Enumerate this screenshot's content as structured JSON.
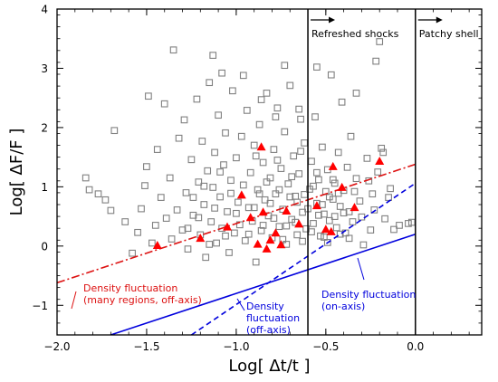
{
  "chart_data": {
    "type": "scatter",
    "xlabel": "Log[ Δt/t ]",
    "ylabel": "Log[ ΔF/F ]",
    "xlim": [
      -2.0,
      0.37
    ],
    "ylim": [
      -1.5,
      4.0
    ],
    "x_ticks": [
      "−2.0",
      "−1.5",
      "−1.0",
      "−0.5",
      "0.0"
    ],
    "x_tick_values": [
      -2.0,
      -1.5,
      -1.0,
      -0.5,
      0.0
    ],
    "y_ticks": [
      "−1",
      "0",
      "1",
      "2",
      "3",
      "4"
    ],
    "y_tick_values": [
      -1,
      0,
      1,
      2,
      3,
      4
    ],
    "grid": false,
    "colors": {
      "squares": "#808080",
      "triangles": "#ff0000",
      "red_line": "#dd1111",
      "blue_line": "#0000dd",
      "axes": "#000000"
    },
    "vertical_lines": [
      {
        "x": -0.6,
        "label": "Refreshed shocks"
      },
      {
        "x": 0.0,
        "label": "Patchy shell"
      }
    ],
    "curves": [
      {
        "style": "dash-dot",
        "color": "#dd1111",
        "x": [
          -2.0,
          0.0
        ],
        "y": [
          -0.62,
          1.38
        ],
        "annotation": [
          "Density fluctuation",
          "(many regions, off-axis)"
        ]
      },
      {
        "style": "dashed",
        "color": "#0000dd",
        "x": [
          -1.25,
          0.0
        ],
        "y": [
          -1.5,
          1.06
        ],
        "annotation": [
          "Density",
          "fluctuation",
          "(off-axis)"
        ]
      },
      {
        "style": "solid",
        "color": "#0000dd",
        "x": [
          -1.7,
          0.0
        ],
        "y": [
          -1.5,
          0.2
        ],
        "annotation": [
          "Density fluctuation",
          "(on-axis)"
        ]
      }
    ],
    "triangles": [
      [
        -1.44,
        0.01
      ],
      [
        -1.2,
        0.13
      ],
      [
        -1.05,
        0.32
      ],
      [
        -0.97,
        0.86
      ],
      [
        -0.92,
        0.48
      ],
      [
        -0.88,
        0.03
      ],
      [
        -0.86,
        1.67
      ],
      [
        -0.85,
        0.57
      ],
      [
        -0.83,
        -0.05
      ],
      [
        -0.81,
        0.1
      ],
      [
        -0.78,
        0.22
      ],
      [
        -0.75,
        0.02
      ],
      [
        -0.72,
        0.59
      ],
      [
        -0.65,
        0.37
      ],
      [
        -0.55,
        0.68
      ],
      [
        -0.5,
        0.28
      ],
      [
        -0.47,
        0.24
      ],
      [
        -0.46,
        1.34
      ],
      [
        -0.41,
        0.99
      ],
      [
        -0.34,
        0.65
      ],
      [
        -0.2,
        1.43
      ]
    ],
    "squares": [
      [
        -1.84,
        1.15
      ],
      [
        -1.82,
        0.95
      ],
      [
        -1.77,
        0.88
      ],
      [
        -1.73,
        0.78
      ],
      [
        -1.7,
        0.6
      ],
      [
        -1.68,
        1.95
      ],
      [
        -1.62,
        0.41
      ],
      [
        -1.58,
        -0.12
      ],
      [
        -1.55,
        0.23
      ],
      [
        -1.53,
        0.63
      ],
      [
        -1.51,
        1.02
      ],
      [
        -1.5,
        1.34
      ],
      [
        -1.49,
        2.53
      ],
      [
        -1.47,
        0.05
      ],
      [
        -1.45,
        0.35
      ],
      [
        -1.44,
        1.63
      ],
      [
        -1.42,
        0.82
      ],
      [
        -1.4,
        2.4
      ],
      [
        -1.39,
        0.47
      ],
      [
        -1.37,
        1.15
      ],
      [
        -1.36,
        0.12
      ],
      [
        -1.35,
        3.31
      ],
      [
        -1.33,
        0.61
      ],
      [
        -1.32,
        1.82
      ],
      [
        -1.3,
        0.27
      ],
      [
        -1.29,
        2.13
      ],
      [
        -1.28,
        0.9
      ],
      [
        -1.27,
        -0.05
      ],
      [
        -1.25,
        1.46
      ],
      [
        -1.24,
        0.52
      ],
      [
        -1.22,
        2.48
      ],
      [
        -1.21,
        1.08
      ],
      [
        -1.2,
        0.19
      ],
      [
        -1.19,
        1.77
      ],
      [
        -1.18,
        0.7
      ],
      [
        -1.17,
        -0.19
      ],
      [
        -1.16,
        1.27
      ],
      [
        -1.15,
        2.76
      ],
      [
        -1.14,
        0.41
      ],
      [
        -1.13,
        0.99
      ],
      [
        -1.12,
        1.58
      ],
      [
        -1.11,
        0.05
      ],
      [
        -1.1,
        2.21
      ],
      [
        -1.09,
        0.83
      ],
      [
        -1.08,
        0.3
      ],
      [
        -1.07,
        1.37
      ],
      [
        -1.06,
        1.91
      ],
      [
        -1.05,
        0.58
      ],
      [
        -1.04,
        -0.11
      ],
      [
        -1.03,
        1.11
      ],
      [
        -1.02,
        2.62
      ],
      [
        -1.01,
        0.22
      ],
      [
        -1.0,
        1.49
      ],
      [
        -0.99,
        0.74
      ],
      [
        -0.98,
        0.36
      ],
      [
        -0.97,
        1.85
      ],
      [
        -0.96,
        1.03
      ],
      [
        -0.95,
        0.09
      ],
      [
        -0.94,
        2.29
      ],
      [
        -0.93,
        0.65
      ],
      [
        -0.92,
        1.24
      ],
      [
        -0.91,
        0.42
      ],
      [
        -0.9,
        1.7
      ],
      [
        -0.89,
        -0.27
      ],
      [
        -0.88,
        0.95
      ],
      [
        -0.87,
        2.05
      ],
      [
        -0.86,
        0.26
      ],
      [
        -0.85,
        1.41
      ],
      [
        -0.84,
        0.78
      ],
      [
        -0.83,
        2.58
      ],
      [
        -0.82,
        0.51
      ],
      [
        -0.81,
        1.15
      ],
      [
        -0.8,
        0.14
      ],
      [
        -0.79,
        1.63
      ],
      [
        -0.78,
        0.88
      ],
      [
        -0.77,
        2.33
      ],
      [
        -0.76,
        0.33
      ],
      [
        -0.75,
        1.31
      ],
      [
        -0.74,
        0.62
      ],
      [
        -0.73,
        1.93
      ],
      [
        -0.72,
        0.03
      ],
      [
        -0.71,
        1.05
      ],
      [
        -0.7,
        2.71
      ],
      [
        -0.69,
        0.45
      ],
      [
        -0.68,
        1.52
      ],
      [
        -0.67,
        0.84
      ],
      [
        -0.66,
        0.19
      ],
      [
        -0.65,
        1.22
      ],
      [
        -0.64,
        2.14
      ],
      [
        -0.63,
        0.57
      ],
      [
        -0.62,
        1.74
      ],
      [
        -0.61,
        0.29
      ],
      [
        -0.59,
        0.96
      ],
      [
        -0.58,
        1.43
      ],
      [
        -0.57,
        0.38
      ],
      [
        -0.56,
        2.18
      ],
      [
        -0.55,
        0.72
      ],
      [
        -0.54,
        1.12
      ],
      [
        -0.53,
        0.17
      ],
      [
        -0.52,
        1.67
      ],
      [
        -0.51,
        0.54
      ],
      [
        -0.5,
        0.92
      ],
      [
        -0.49,
        1.29
      ],
      [
        -0.48,
        0.43
      ],
      [
        -0.47,
        2.89
      ],
      [
        -0.46,
        0.79
      ],
      [
        -0.45,
        1.06
      ],
      [
        -0.44,
        0.31
      ],
      [
        -0.43,
        1.58
      ],
      [
        -0.42,
        0.67
      ],
      [
        -0.41,
        2.43
      ],
      [
        -0.4,
        0.94
      ],
      [
        -0.39,
        0.22
      ],
      [
        -0.38,
        1.33
      ],
      [
        -0.37,
        0.58
      ],
      [
        -0.36,
        1.85
      ],
      [
        -0.35,
        0.41
      ],
      [
        -0.33,
        1.14
      ],
      [
        -0.31,
        0.76
      ],
      [
        -0.29,
        0.02
      ],
      [
        -0.27,
        1.48
      ],
      [
        -0.25,
        0.27
      ],
      [
        -0.24,
        0.88
      ],
      [
        -0.22,
        3.12
      ],
      [
        -0.21,
        1.25
      ],
      [
        -0.19,
        1.65
      ],
      [
        -0.17,
        0.46
      ],
      [
        -0.15,
        0.82
      ],
      [
        -0.12,
        0.28
      ],
      [
        -0.09,
        0.35
      ],
      [
        -0.04,
        0.38
      ],
      [
        -0.02,
        0.4
      ],
      [
        -0.2,
        3.45
      ],
      [
        -0.96,
        2.88
      ],
      [
        -1.08,
        2.92
      ],
      [
        -0.33,
        2.58
      ],
      [
        -0.65,
        2.31
      ],
      [
        -0.86,
        2.47
      ],
      [
        -0.73,
        3.05
      ],
      [
        -1.13,
        3.22
      ],
      [
        -0.55,
        3.02
      ],
      [
        -0.78,
        2.18
      ],
      [
        -0.9,
        0.65
      ],
      [
        -0.87,
        0.88
      ],
      [
        -0.83,
        1.08
      ],
      [
        -0.79,
        0.47
      ],
      [
        -0.76,
        0.95
      ],
      [
        -0.72,
        0.34
      ],
      [
        -0.69,
        1.17
      ],
      [
        -0.66,
        0.74
      ],
      [
        -0.63,
        0.08
      ],
      [
        -0.6,
        0.63
      ],
      [
        -0.57,
        1.01
      ],
      [
        -0.54,
        0.52
      ],
      [
        -0.51,
        0.15
      ],
      [
        -0.48,
        0.83
      ],
      [
        -0.45,
        0.5
      ],
      [
        -0.42,
        0.2
      ],
      [
        -1.0,
        0.55
      ],
      [
        -1.03,
        0.89
      ],
      [
        -1.06,
        0.17
      ],
      [
        -1.09,
        1.25
      ],
      [
        -1.12,
        0.64
      ],
      [
        -1.15,
        0.03
      ],
      [
        -1.18,
        1.01
      ],
      [
        -1.21,
        0.48
      ],
      [
        -1.24,
        0.82
      ],
      [
        -1.27,
        0.3
      ],
      [
        -0.93,
        0.2
      ],
      [
        -0.89,
        1.52
      ],
      [
        -0.85,
        0.35
      ],
      [
        -0.81,
        0.72
      ],
      [
        -0.77,
        1.45
      ],
      [
        -0.74,
        0.11
      ],
      [
        -0.7,
        0.83
      ],
      [
        -0.67,
        0.4
      ],
      [
        -0.64,
        1.6
      ],
      [
        -0.62,
        0.87
      ],
      [
        -0.58,
        0.24
      ],
      [
        -0.55,
        1.24
      ],
      [
        -0.52,
        0.7
      ],
      [
        -0.49,
        0.06
      ],
      [
        -0.46,
        1.12
      ],
      [
        -0.43,
        0.89
      ],
      [
        -0.4,
        0.56
      ],
      [
        -0.37,
        0.13
      ],
      [
        -0.34,
        0.92
      ],
      [
        -0.3,
        0.49
      ],
      [
        -0.26,
        1.1
      ],
      [
        -0.23,
        0.61
      ],
      [
        -0.18,
        1.58
      ],
      [
        -0.14,
        0.97
      ]
    ]
  }
}
